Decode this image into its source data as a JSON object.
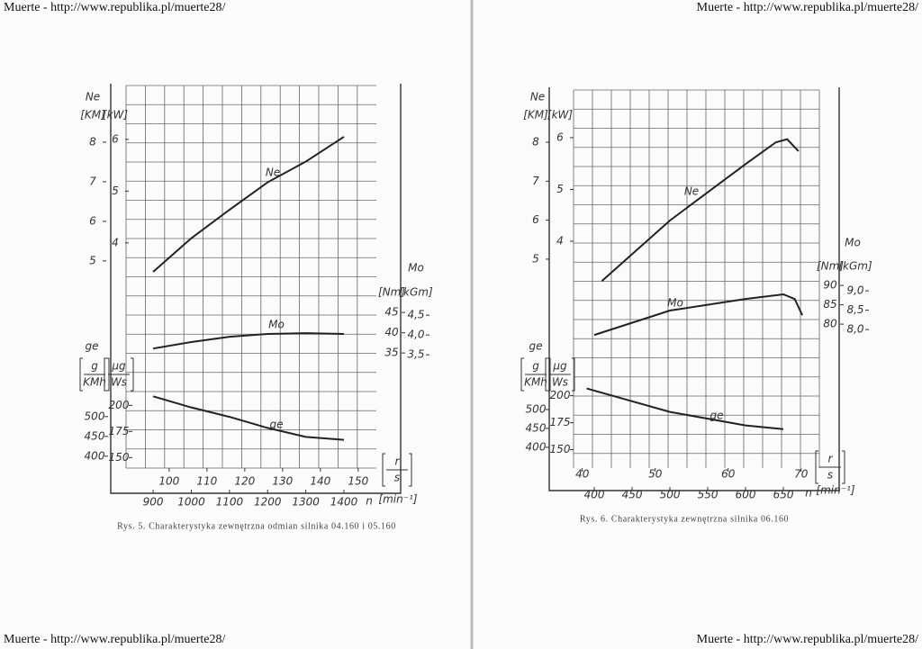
{
  "watermarks": [
    "Muerte - http://www.republika.pl/muerte28/",
    "Muerte - http://www.republika.pl/muerte28/",
    "Muerte - http://www.republika.pl/muerte28/",
    "Muerte - http://www.republika.pl/muerte28/"
  ],
  "chart_data": [
    {
      "type": "line",
      "caption": "Rys. 5. Charakterystyka zewnętrzna odmian silnika 04.160 i 05.160",
      "xlabel": "n",
      "xunit": "[min⁻¹]",
      "xlim": [
        829,
        1485
      ],
      "xticks": [
        900,
        1000,
        1100,
        1200,
        1300,
        1400
      ],
      "x2unit": {
        "num": "r",
        "den": "s"
      },
      "x2lim": [
        88.6,
        154.8
      ],
      "x2ticks": [
        100,
        110,
        120,
        130,
        140,
        150
      ],
      "y_groups": [
        {
          "label": "Ne",
          "axes": [
            {
              "unit": "[KM]",
              "lim": [
                -0.23,
                9.43
              ],
              "ticks": [
                5,
                6,
                7,
                8
              ]
            },
            {
              "unit": "[kW]",
              "lim": [
                -0.35,
                7.04
              ],
              "ticks": [
                4,
                5,
                6
              ]
            }
          ]
        },
        {
          "label": "Mo",
          "axes": [
            {
              "unit": "[Nm]",
              "lim": [
                6.6,
                101
              ],
              "ticks": [
                35,
                40,
                45
              ]
            },
            {
              "unit": "[kGm]",
              "lim": [
                0.64,
                10.3
              ],
              "ticks": [
                {
                  "value": 3.5,
                  "label": "3,5"
                },
                {
                  "value": 4,
                  "label": "4,0"
                },
                {
                  "value": 4.5,
                  "label": "4,5"
                }
              ]
            }
          ]
        },
        {
          "label": "ge",
          "axes": [
            {
              "unit": {
                "num": "g",
                "den": "KMh"
              },
              "lim": [
                370,
                1336
              ],
              "ticks": [
                400,
                450,
                500
              ]
            },
            {
              "unit": {
                "num": "μg",
                "den": "Ws"
              },
              "lim": [
                140,
                506
              ],
              "ticks": [
                150,
                175,
                200
              ]
            }
          ]
        }
      ],
      "series": [
        {
          "name": "Ne",
          "group": 0,
          "scale": 1,
          "x": [
            900,
            1000,
            1100,
            1200,
            1300,
            1400
          ],
          "values": [
            3.44,
            4.09,
            4.64,
            5.17,
            5.57,
            6.05
          ]
        },
        {
          "name": "Mo",
          "group": 1,
          "scale": 0,
          "x": [
            900,
            1000,
            1100,
            1200,
            1300,
            1400
          ],
          "values": [
            36.1,
            37.7,
            39,
            39.7,
            39.9,
            39.7
          ]
        },
        {
          "name": "ge",
          "group": 2,
          "scale": 1,
          "x": [
            900,
            1000,
            1100,
            1200,
            1300,
            1400
          ],
          "values": [
            208.6,
            198,
            189,
            178.4,
            169.8,
            167
          ]
        }
      ]
    },
    {
      "type": "line",
      "caption": "Rys. 6. Charakterystyka zewnętrzna silnika 06.160",
      "xlabel": "n",
      "xunit": "[min⁻¹]",
      "xlim": [
        372.6,
        697.6
      ],
      "xticks": [
        400,
        450,
        500,
        550,
        600,
        650
      ],
      "x2unit": {
        "num": "r",
        "den": "s"
      },
      "x2lim": [
        38.8,
        72.5
      ],
      "x2ticks": [
        40,
        50,
        60,
        70
      ],
      "y_groups": [
        {
          "label": "Ne",
          "axes": [
            {
              "unit": "[KM]",
              "lim": [
                -0.36,
                9.34
              ],
              "ticks": [
                5,
                6,
                7,
                8
              ]
            },
            {
              "unit": "[kW]",
              "lim": [
                -0.38,
                6.92
              ],
              "ticks": [
                4,
                5,
                6
              ]
            }
          ]
        },
        {
          "label": "Mo",
          "axes": [
            {
              "unit": "[Nm]",
              "lim": [
                42.8,
                140.5
              ],
              "ticks": [
                80,
                85,
                90
              ]
            },
            {
              "unit": "[kGm]",
              "lim": [
                4.42,
                14.19
              ],
              "ticks": [
                {
                  "value": 8,
                  "label": "8,0"
                },
                {
                  "value": 8.5,
                  "label": "8,5"
                },
                {
                  "value": 9,
                  "label": "9,0"
                }
              ]
            }
          ]
        },
        {
          "label": "ge",
          "axes": [
            {
              "unit": {
                "num": "g",
                "den": "KMh"
              },
              "lim": [
                345,
                1345
              ],
              "ticks": [
                400,
                450,
                500
              ]
            },
            {
              "unit": {
                "num": "μg",
                "den": "Ws"
              },
              "lim": [
                133,
                483
              ],
              "ticks": [
                150,
                175,
                200
              ]
            }
          ]
        }
      ],
      "series": [
        {
          "name": "Ne",
          "group": 0,
          "scale": 1,
          "x": [
            410,
            500,
            600,
            640,
            655,
            670
          ],
          "values": [
            3.23,
            4.4,
            5.49,
            5.91,
            5.97,
            5.74
          ]
        },
        {
          "name": "Mo",
          "group": 1,
          "scale": 0,
          "x": [
            400,
            500,
            600,
            650,
            665,
            675
          ],
          "values": [
            77.2,
            83.5,
            86.5,
            87.7,
            86.5,
            82.3
          ]
        },
        {
          "name": "ge",
          "group": 2,
          "scale": 1,
          "x": [
            390,
            500,
            600,
            650
          ],
          "values": [
            206.7,
            185,
            172.5,
            169
          ]
        }
      ]
    }
  ]
}
